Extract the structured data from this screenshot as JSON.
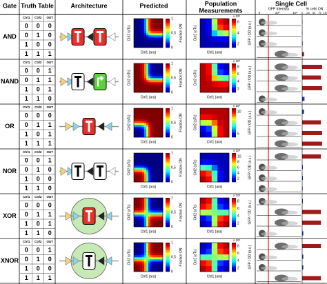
{
  "header": {
    "gate": "Gate",
    "truth_table": "Truth Table",
    "architecture": "Architecture",
    "predicted": "Predicted",
    "population_1": "Population",
    "population_2": "Measurements",
    "single_cell": "Single Cell"
  },
  "truth_columns": [
    "Ctrl1",
    "Ctrl2",
    "OUT"
  ],
  "predicted_axes": {
    "y_label": "Ctrl2 (aTc)",
    "x_label": "Ctrl1 (ara)",
    "colorbar_label": "Fraction ON",
    "colorbar_ticks": [
      0,
      0.5,
      1
    ]
  },
  "population_axes": {
    "y_label": "Ctrl2 (aTc)",
    "x_label": "Ctrl1 (ara)",
    "colorbar_label": "GFP / OD (a.u.)",
    "colorbar_scale": "x 10⁴"
  },
  "single_cell_axes": {
    "x_label": "GFP Intensity",
    "x_ticks": [
      "0",
      "10²",
      "10⁴"
    ],
    "bar_label": "% cells ON",
    "bar_ticks": [
      0,
      25,
      50,
      75,
      100
    ]
  },
  "gates": [
    {
      "name": "AND",
      "rows": [
        [
          0,
          0,
          0
        ],
        [
          0,
          1,
          0
        ],
        [
          1,
          0,
          0
        ],
        [
          1,
          1,
          1
        ]
      ],
      "population_ticks": [
        6,
        4,
        2
      ],
      "percent_on": [
        1,
        1,
        2,
        8
      ]
    },
    {
      "name": "NAND",
      "rows": [
        [
          0,
          0,
          1
        ],
        [
          0,
          1,
          1
        ],
        [
          1,
          0,
          1
        ],
        [
          1,
          1,
          0
        ]
      ],
      "population_ticks": [
        8,
        6,
        4,
        2
      ],
      "percent_on": [
        85,
        80,
        85,
        10
      ]
    },
    {
      "name": "OR",
      "rows": [
        [
          0,
          0,
          0
        ],
        [
          0,
          1,
          1
        ],
        [
          1,
          0,
          1
        ],
        [
          1,
          1,
          1
        ]
      ],
      "population_ticks": [
        10,
        5
      ],
      "percent_on": [
        8,
        80,
        85,
        85
      ]
    },
    {
      "name": "NOR",
      "rows": [
        [
          0,
          0,
          1
        ],
        [
          0,
          1,
          0
        ],
        [
          1,
          0,
          0
        ],
        [
          1,
          1,
          0
        ]
      ],
      "population_ticks": [
        10,
        8,
        6,
        4,
        2
      ],
      "percent_on": [
        80,
        3,
        3,
        2
      ]
    },
    {
      "name": "XOR",
      "rows": [
        [
          0,
          0,
          0
        ],
        [
          0,
          1,
          1
        ],
        [
          1,
          0,
          1
        ],
        [
          1,
          1,
          0
        ]
      ],
      "population_ticks": [
        8,
        6,
        4,
        2
      ],
      "percent_on": [
        3,
        80,
        80,
        5
      ]
    },
    {
      "name": "XNOR",
      "rows": [
        [
          0,
          0,
          1
        ],
        [
          0,
          1,
          0
        ],
        [
          1,
          0,
          0
        ],
        [
          1,
          1,
          1
        ]
      ],
      "population_ticks": [
        8,
        6,
        4,
        2
      ],
      "percent_on": [
        80,
        5,
        5,
        80
      ]
    }
  ]
}
